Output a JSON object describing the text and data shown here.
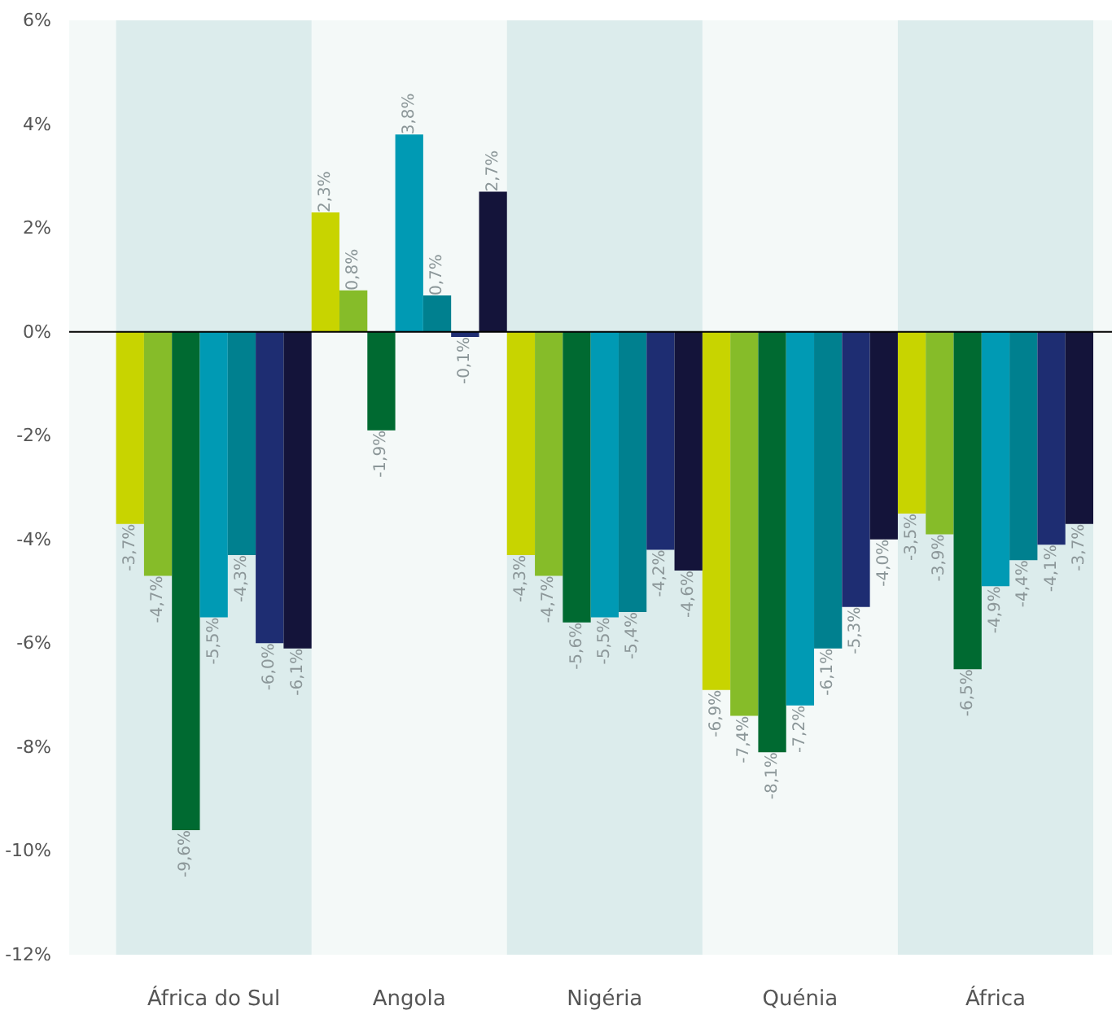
{
  "chart_data": {
    "type": "bar",
    "categories": [
      "África do Sul",
      "Angola",
      "Nigéria",
      "Quénia",
      "África"
    ],
    "series": [
      {
        "color": "#c8d400",
        "values": [
          -3.7,
          2.3,
          -4.3,
          -6.9,
          -3.5
        ],
        "value_labels": [
          "-3,7%",
          "2,3%",
          "-4,3%",
          "-6,9%",
          "-3,5%"
        ]
      },
      {
        "color": "#86bc29",
        "values": [
          -4.7,
          0.8,
          -4.7,
          -7.4,
          -3.9
        ],
        "value_labels": [
          "-4,7%",
          "0,8%",
          "-4,7%",
          "-7,4%",
          "-3,9%"
        ]
      },
      {
        "color": "#006a31",
        "values": [
          -9.6,
          -1.9,
          -5.6,
          -8.1,
          -6.5
        ],
        "value_labels": [
          "-9,6%",
          "-1,9%",
          "-5,6%",
          "-8,1%",
          "-6,5%"
        ]
      },
      {
        "color": "#009ab4",
        "values": [
          -5.5,
          3.8,
          -5.5,
          -7.2,
          -4.9
        ],
        "value_labels": [
          "-5,5%",
          "3,8%",
          "-5,5%",
          "-7,2%",
          "-4,9%"
        ]
      },
      {
        "color": "#00808f",
        "values": [
          -4.3,
          0.7,
          -5.4,
          -6.1,
          -4.4
        ],
        "value_labels": [
          "-4,3%",
          "0,7%",
          "-5,4%",
          "-6,1%",
          "-4,4%"
        ]
      },
      {
        "color": "#1e2d72",
        "values": [
          -6.0,
          -0.1,
          -4.2,
          -5.3,
          -4.1
        ],
        "value_labels": [
          "-6,0%",
          "-0,1%",
          "-4,2%",
          "-5,3%",
          "-4,1%"
        ]
      },
      {
        "color": "#14143a",
        "values": [
          -6.1,
          2.7,
          -4.6,
          -4.0,
          -3.7
        ],
        "value_labels": [
          "-6,1%",
          "2,7%",
          "-4,6%",
          "-4,0%",
          "-3,7%"
        ]
      }
    ],
    "ylim": [
      -12,
      6
    ],
    "yticks": [
      {
        "value": -12,
        "label": "-12%"
      },
      {
        "value": -10,
        "label": "-10%"
      },
      {
        "value": -8,
        "label": "-8%"
      },
      {
        "value": -6,
        "label": "-6%"
      },
      {
        "value": -4,
        "label": "-4%"
      },
      {
        "value": -2,
        "label": "-2%"
      },
      {
        "value": 0,
        "label": "0%"
      },
      {
        "value": 2,
        "label": "2%"
      },
      {
        "value": 4,
        "label": "4%"
      },
      {
        "value": 6,
        "label": "6%"
      }
    ],
    "ref_lines": [
      {
        "axis": "y",
        "value": 0,
        "color": "#000000"
      }
    ],
    "bands": [
      {
        "axis": "x",
        "from": "África do Sul",
        "to": "África do Sul",
        "color": "#dcecec"
      },
      {
        "axis": "x",
        "from": "Nigéria",
        "to": "Nigéria",
        "color": "#dcecec"
      },
      {
        "axis": "x",
        "from": "África",
        "to": "África",
        "color": "#dcecec"
      }
    ],
    "grid": false
  }
}
